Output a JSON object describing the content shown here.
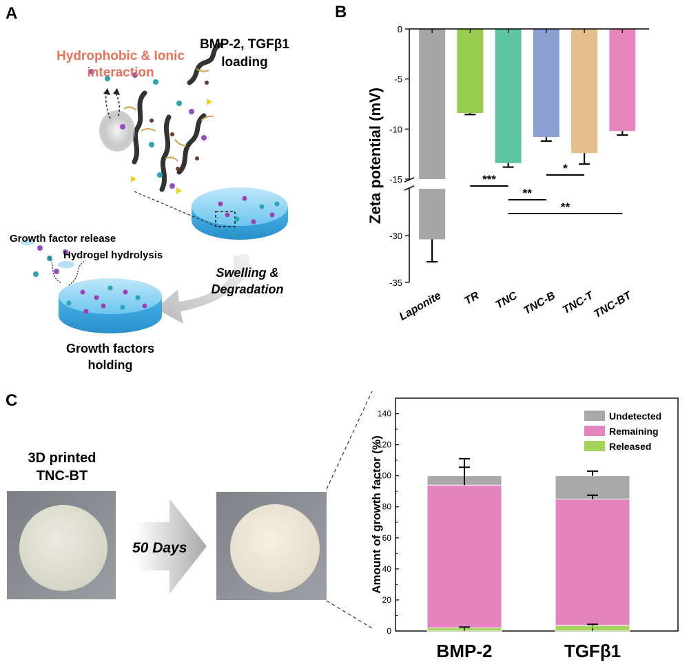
{
  "panels": {
    "a": {
      "letter": "A",
      "interaction_label_1": "Hydrophobic & Ionic",
      "interaction_label_2": "interaction",
      "loading_label_1": "BMP-2, TGFβ1",
      "loading_label_2": "loading",
      "release_label": "Growth factor release",
      "hydrolysis_label": "Hydrogel hydrolysis",
      "swelling_label_1": "Swelling &",
      "swelling_label_2": "Degradation",
      "holding_label_1": "Growth factors",
      "holding_label_2": "holding"
    },
    "b": {
      "letter": "B"
    },
    "c": {
      "letter": "C",
      "printed_label_1": "3D printed",
      "printed_label_2": "TNC-BT",
      "days_label": "50 Days"
    }
  },
  "colors": {
    "interaction_text": "#e8735a",
    "laponite": "#a6a6a6",
    "tr": "#9acd4e",
    "tnc": "#5cc4a0",
    "tnc_b": "#8b9fd1",
    "tnc_t": "#e6c08c",
    "tnc_bt": "#e586bc",
    "undetected": "#a8a8a8",
    "remaining": "#e384bf",
    "released": "#a4d45a"
  },
  "chart_data": [
    {
      "type": "bar",
      "panel": "B",
      "ylabel": "Zeta potential (mV)",
      "categories": [
        "Laponite",
        "TR",
        "TNC",
        "TNC-B",
        "TNC-T",
        "TNC-BT"
      ],
      "values": [
        -30.4,
        -8.4,
        -13.4,
        -10.8,
        -12.4,
        -10.2
      ],
      "errors": [
        2.4,
        0.15,
        0.4,
        0.4,
        1.1,
        0.4
      ],
      "y_axis_break": [
        -15,
        -25
      ],
      "ylim": [
        -35,
        0
      ],
      "yticks": [
        "0",
        "-5",
        "-10",
        "-15",
        "-30",
        "-35"
      ],
      "significance": [
        {
          "from": "TR",
          "to": "TNC",
          "label": "***"
        },
        {
          "from": "TNC",
          "to": "TNC-B",
          "label": "**"
        },
        {
          "from": "TNC-B",
          "to": "TNC-T",
          "label": "*"
        },
        {
          "from": "TNC",
          "to": "TNC-BT",
          "label": "**"
        }
      ],
      "grid": false
    },
    {
      "type": "bar",
      "stacked": true,
      "panel": "C",
      "ylabel": "Amount of growth factor (%)",
      "categories": [
        "BMP-2",
        "TGFβ1"
      ],
      "series": [
        {
          "name": "Released",
          "values": [
            2,
            3.5
          ],
          "errors": [
            0.5,
            0.8
          ]
        },
        {
          "name": "Remaining",
          "values": [
            92,
            81.5
          ],
          "errors": [
            17,
            2.5
          ]
        },
        {
          "name": "Undetected",
          "values": [
            6,
            15
          ],
          "errors": [
            5.5,
            3
          ]
        }
      ],
      "ylim": [
        0,
        150
      ],
      "yticks": [
        "0",
        "20",
        "40",
        "60",
        "80",
        "100",
        "120",
        "140"
      ],
      "legend": "top-right",
      "legend_order": [
        "Undetected",
        "Remaining",
        "Released"
      ],
      "grid": false
    }
  ]
}
